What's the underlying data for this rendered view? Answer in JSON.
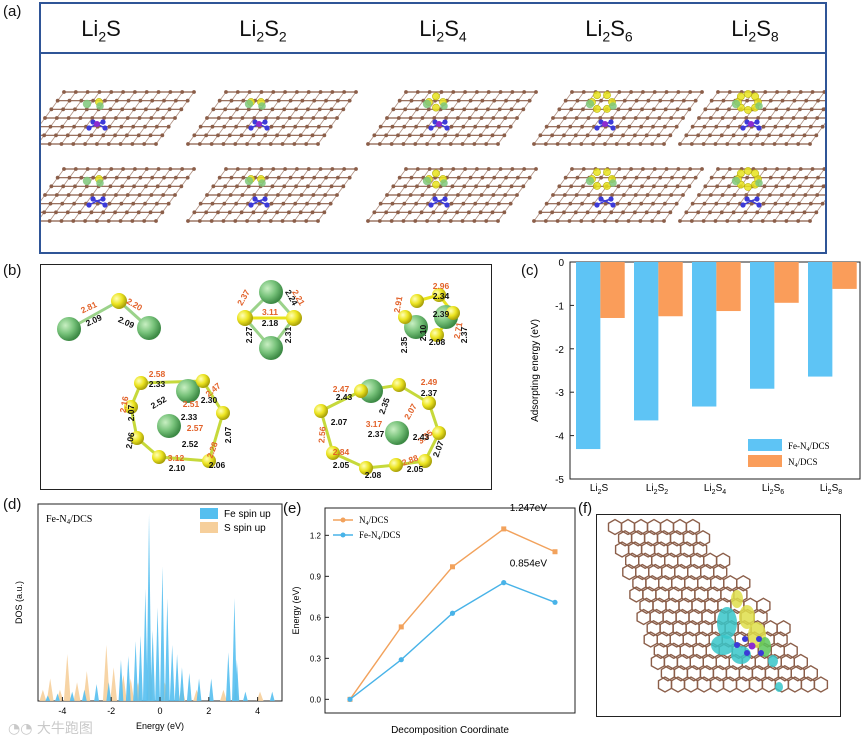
{
  "labels": {
    "a": "(a)",
    "b": "(b)",
    "c": "(c)",
    "d": "(d)",
    "e": "(e)",
    "f": "(f)"
  },
  "panel_a": {
    "species": [
      "Li2S",
      "Li2S2",
      "Li2S4",
      "Li2S6",
      "Li2S8"
    ]
  },
  "panel_b": {
    "li2s": {
      "orange": [
        "2.81",
        "2.20"
      ],
      "black": [
        "2.09",
        "2.09"
      ]
    },
    "li2s2": {
      "orange": [
        "2.37",
        "3.11",
        "2.21"
      ],
      "black": [
        "2.18",
        "2.24",
        "2.27",
        "2.31"
      ]
    },
    "li2s4": {
      "orange": [
        "2.91",
        "2.96",
        "2.71"
      ],
      "black": [
        "2.34",
        "2.39",
        "2.37",
        "2.08",
        "2.10",
        "2.35"
      ]
    },
    "li2s6": {
      "orange": [
        "2.58",
        "2.47",
        "2.16",
        "2.51",
        "2.57",
        "2.28",
        "3.12"
      ],
      "black": [
        "2.33",
        "2.52",
        "2.30",
        "2.33",
        "2.07",
        "2.07",
        "2.52",
        "2.06",
        "2.10",
        "2.06"
      ]
    },
    "li2s8": {
      "orange": [
        "2.47",
        "2.49",
        "2.56",
        "3.17",
        "2.07",
        "2.84",
        "3.35",
        "2.88"
      ],
      "black": [
        "2.43",
        "2.37",
        "2.07",
        "2.35",
        "2.37",
        "2.43",
        "2.05",
        "2.08",
        "2.05",
        "2.07"
      ]
    }
  },
  "chart_data": [
    {
      "type": "bar",
      "panel": "c",
      "categories": [
        "Li2S",
        "Li2S2",
        "Li2S4",
        "Li2S6",
        "Li2S8"
      ],
      "series": [
        {
          "name": "Fe-N4/DCS",
          "color": "#5ec4f5",
          "values": [
            -4.31,
            -3.65,
            -3.33,
            -2.92,
            -2.64
          ]
        },
        {
          "name": "N4/DCS",
          "color": "#fa9d5a",
          "values": [
            -1.29,
            -1.25,
            -1.13,
            -0.94,
            -0.62
          ]
        }
      ],
      "ylabel": "Adsorpting energy (eV)",
      "ylim": [
        -5,
        0
      ],
      "yticks": [
        "0",
        "-1",
        "-2",
        "-3",
        "-4",
        "-5"
      ],
      "legend": "bottom-right"
    },
    {
      "type": "area",
      "panel": "d",
      "title": "Fe-N4/DCS",
      "xlabel": "Energy (eV)",
      "ylabel": "DOS (a.u.)",
      "xlim": [
        -5,
        5
      ],
      "xticks": [
        "-4",
        "-2",
        "0",
        "2",
        "4"
      ],
      "series": [
        {
          "name": "Fe spin up",
          "color": "#55bfef",
          "peaks": [
            [
              -4.6,
              0.03
            ],
            [
              -4.2,
              0.04
            ],
            [
              -3.6,
              0.05
            ],
            [
              -3.1,
              0.06
            ],
            [
              -2.6,
              0.09
            ],
            [
              -2.1,
              0.1
            ],
            [
              -1.6,
              0.22
            ],
            [
              -1.3,
              0.24
            ],
            [
              -1.0,
              0.32
            ],
            [
              -0.8,
              0.35
            ],
            [
              -0.6,
              0.6
            ],
            [
              -0.45,
              1.0
            ],
            [
              -0.3,
              0.38
            ],
            [
              -0.1,
              0.5
            ],
            [
              0.1,
              0.72
            ],
            [
              0.3,
              0.55
            ],
            [
              0.5,
              0.3
            ],
            [
              0.7,
              0.25
            ],
            [
              0.9,
              0.18
            ],
            [
              1.2,
              0.15
            ],
            [
              1.6,
              0.12
            ],
            [
              2.1,
              0.12
            ],
            [
              2.8,
              0.26
            ],
            [
              3.05,
              0.55
            ],
            [
              3.15,
              0.22
            ],
            [
              3.5,
              0.05
            ],
            [
              4.6,
              0.05
            ]
          ]
        },
        {
          "name": "S   spin up",
          "color": "#f6cf9b",
          "peaks": [
            [
              -4.8,
              0.06
            ],
            [
              -4.5,
              0.12
            ],
            [
              -4.1,
              0.06
            ],
            [
              -3.8,
              0.25
            ],
            [
              -3.4,
              0.1
            ],
            [
              -3.0,
              0.16
            ],
            [
              -2.2,
              0.3
            ],
            [
              -1.9,
              0.18
            ],
            [
              -1.5,
              0.14
            ],
            [
              -1.2,
              0.12
            ],
            [
              -0.9,
              0.1
            ],
            [
              -0.4,
              0.2
            ],
            [
              0.2,
              0.1
            ],
            [
              0.9,
              0.08
            ],
            [
              1.5,
              0.06
            ],
            [
              2.6,
              0.06
            ],
            [
              3.1,
              0.1
            ],
            [
              4.1,
              0.05
            ]
          ]
        }
      ]
    },
    {
      "type": "line",
      "panel": "e",
      "xlabel": "Decomposition Coordinate",
      "ylabel": "Energy (eV)",
      "ylim": [
        -0.1,
        1.4
      ],
      "yticks": [
        "0.0",
        "0.3",
        "0.6",
        "0.9",
        "1.2"
      ],
      "series": [
        {
          "name": "N4/DCS",
          "color": "#f2a25c",
          "values": [
            0,
            0.53,
            0.97,
            1.247,
            1.08
          ]
        },
        {
          "name": "Fe-N4/DCS",
          "color": "#48b3e8",
          "values": [
            0,
            0.29,
            0.63,
            0.854,
            0.71
          ]
        }
      ],
      "annotations": [
        "1.247eV",
        "0.854eV"
      ]
    }
  ],
  "colors": {
    "carbon": "#8b5e49",
    "nitrogen": "#3c3ad8",
    "iron": "#8c2bd0",
    "sulfur": "#e8e31c",
    "lithium": "#7ec77a",
    "frame": "#2f5597"
  },
  "watermark": "大牛跑图"
}
